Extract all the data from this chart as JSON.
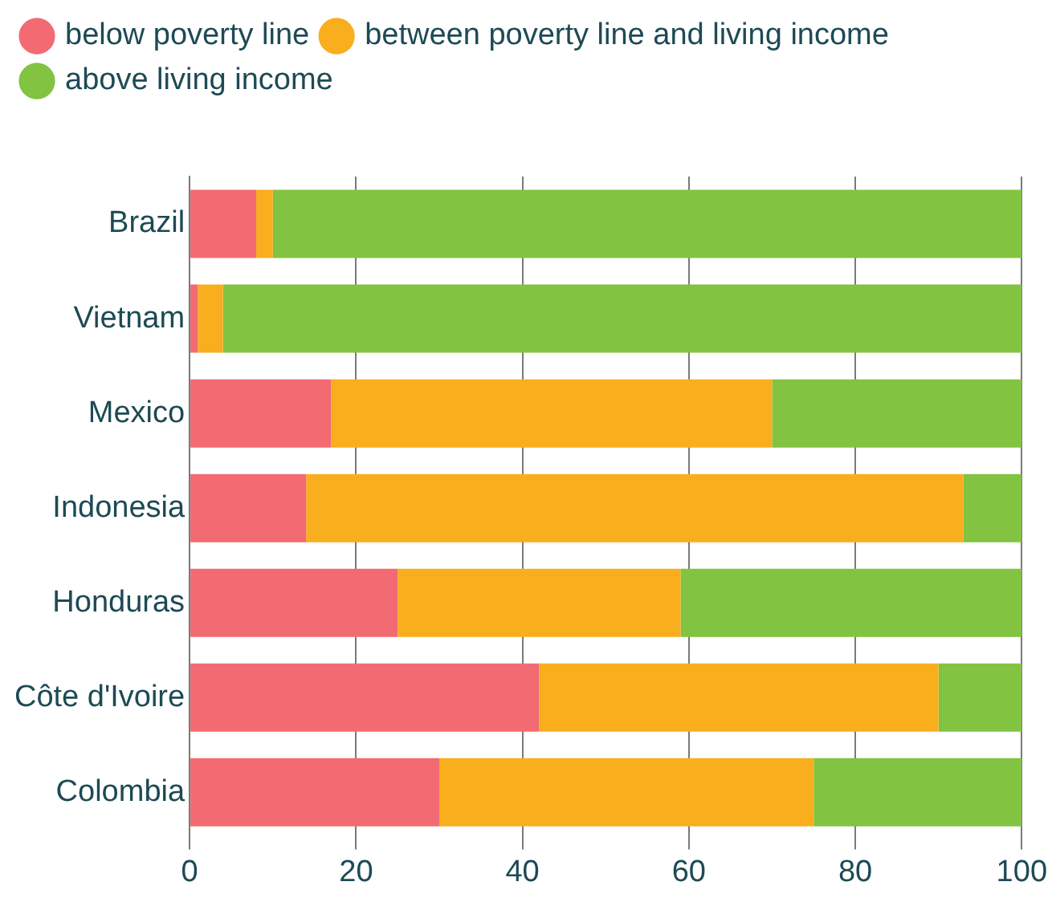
{
  "chart_data": {
    "type": "bar",
    "orientation": "horizontal",
    "stacked": true,
    "categories": [
      "Brazil",
      "Vietnam",
      "Mexico",
      "Indonesia",
      "Honduras",
      "Côte d'Ivoire",
      "Colombia"
    ],
    "series": [
      {
        "name": "below poverty line",
        "color": "#f26b73",
        "values": [
          8,
          1,
          17,
          14,
          25,
          42,
          30
        ]
      },
      {
        "name": "between poverty line and living income",
        "color": "#f9ae1d",
        "values": [
          2,
          3,
          53,
          79,
          34,
          48,
          45
        ]
      },
      {
        "name": "above living income",
        "color": "#82c341",
        "values": [
          90,
          96,
          30,
          7,
          41,
          10,
          25
        ]
      }
    ],
    "xlim": [
      0,
      100
    ],
    "xticks": [
      0,
      20,
      40,
      60,
      80,
      100
    ],
    "grid": "x",
    "legend": "top left"
  }
}
